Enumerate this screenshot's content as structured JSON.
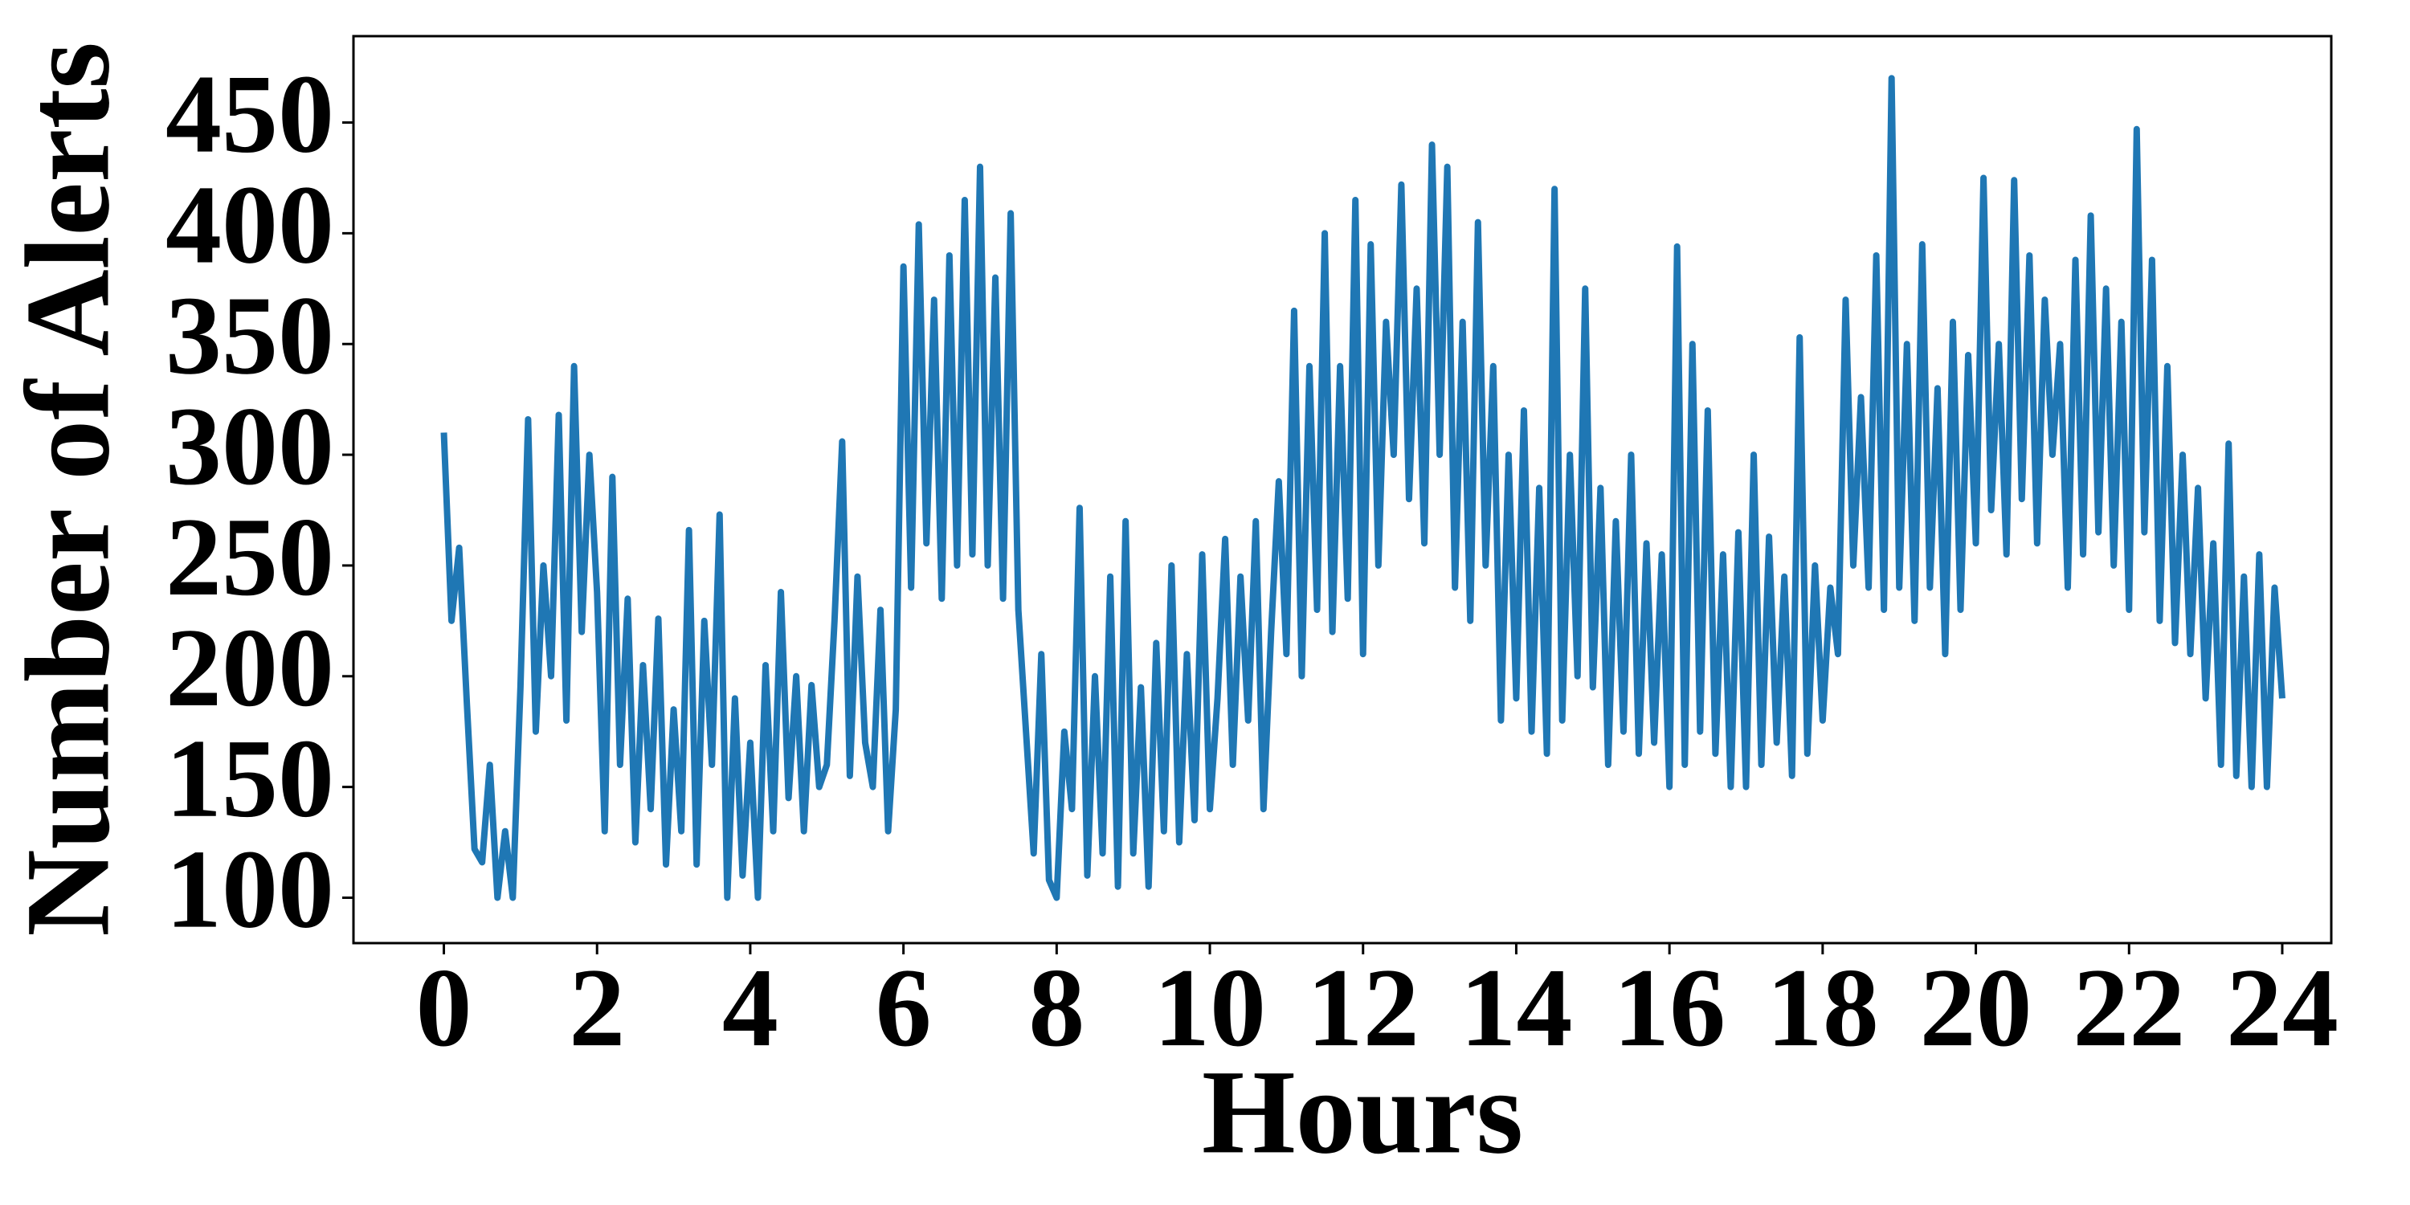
{
  "chart_data": {
    "type": "line",
    "xlabel": "Hours",
    "ylabel": "Number of Alerts",
    "color": "#1f77b4",
    "xlim": [
      -1.18,
      24.64
    ],
    "ylim": [
      79.5,
      489
    ],
    "xticks": [
      0,
      2,
      4,
      6,
      8,
      10,
      12,
      14,
      16,
      18,
      20,
      22,
      24
    ],
    "yticks": [
      100,
      150,
      200,
      250,
      300,
      350,
      400,
      450
    ],
    "grid": false,
    "x": [
      0,
      0.1,
      0.2,
      0.3,
      0.4,
      0.5,
      0.6,
      0.7,
      0.8,
      0.9,
      1,
      1.1,
      1.2,
      1.3,
      1.4,
      1.5,
      1.6,
      1.7,
      1.8,
      1.9,
      2,
      2.1,
      2.2,
      2.3,
      2.4,
      2.5,
      2.6,
      2.7,
      2.8,
      2.9,
      3,
      3.1,
      3.2,
      3.3,
      3.4,
      3.5,
      3.6,
      3.7,
      3.8,
      3.9,
      4,
      4.1,
      4.2,
      4.3,
      4.4,
      4.5,
      4.6,
      4.7,
      4.8,
      4.9,
      5,
      5.1,
      5.2,
      5.3,
      5.4,
      5.5,
      5.6,
      5.7,
      5.8,
      5.9,
      6,
      6.1,
      6.2,
      6.3,
      6.4,
      6.5,
      6.6,
      6.7,
      6.8,
      6.9,
      7,
      7.1,
      7.2,
      7.3,
      7.4,
      7.5,
      7.6,
      7.7,
      7.8,
      7.9,
      8,
      8.1,
      8.2,
      8.3,
      8.4,
      8.5,
      8.6,
      8.7,
      8.8,
      8.9,
      9,
      9.1,
      9.2,
      9.3,
      9.4,
      9.5,
      9.6,
      9.7,
      9.8,
      9.9,
      10,
      10.1,
      10.2,
      10.3,
      10.4,
      10.5,
      10.6,
      10.7,
      10.8,
      10.9,
      11,
      11.1,
      11.2,
      11.3,
      11.4,
      11.5,
      11.6,
      11.7,
      11.8,
      11.9,
      12,
      12.1,
      12.2,
      12.3,
      12.4,
      12.5,
      12.6,
      12.7,
      12.8,
      12.9,
      13,
      13.1,
      13.2,
      13.3,
      13.4,
      13.5,
      13.6,
      13.7,
      13.8,
      13.9,
      14,
      14.1,
      14.2,
      14.3,
      14.4,
      14.5,
      14.6,
      14.7,
      14.8,
      14.9,
      15,
      15.1,
      15.2,
      15.3,
      15.4,
      15.5,
      15.6,
      15.7,
      15.8,
      15.9,
      16,
      16.1,
      16.2,
      16.3,
      16.4,
      16.5,
      16.6,
      16.7,
      16.8,
      16.9,
      17,
      17.1,
      17.2,
      17.3,
      17.4,
      17.5,
      17.6,
      17.7,
      17.8,
      17.9,
      18,
      18.1,
      18.2,
      18.3,
      18.4,
      18.5,
      18.6,
      18.7,
      18.8,
      18.9,
      19,
      19.1,
      19.2,
      19.3,
      19.4,
      19.5,
      19.6,
      19.7,
      19.8,
      19.9,
      20,
      20.1,
      20.2,
      20.3,
      20.4,
      20.5,
      20.6,
      20.7,
      20.8,
      20.9,
      21,
      21.1,
      21.2,
      21.3,
      21.4,
      21.5,
      21.6,
      21.7,
      21.8,
      21.9,
      22,
      22.1,
      22.2,
      22.3,
      22.4,
      22.5,
      22.6,
      22.7,
      22.8,
      22.9,
      23,
      23.1,
      23.2,
      23.3,
      23.4,
      23.5,
      23.6,
      23.7,
      23.8,
      23.9,
      24
    ],
    "values": [
      310,
      225,
      258,
      188,
      122,
      116,
      160,
      100,
      130,
      100,
      195,
      316,
      175,
      250,
      200,
      318,
      180,
      340,
      220,
      300,
      238,
      130,
      290,
      160,
      235,
      125,
      205,
      140,
      226,
      115,
      185,
      130,
      266,
      115,
      225,
      160,
      273,
      100,
      190,
      110,
      170,
      100,
      205,
      130,
      238,
      145,
      200,
      130,
      196,
      150,
      160,
      225,
      306,
      155,
      245,
      170,
      150,
      230,
      130,
      185,
      385,
      240,
      404,
      260,
      370,
      235,
      390,
      250,
      415,
      255,
      430,
      250,
      380,
      235,
      409,
      230,
      175,
      120,
      210,
      108,
      100,
      175,
      140,
      276,
      110,
      200,
      120,
      245,
      105,
      270,
      120,
      195,
      105,
      215,
      130,
      250,
      125,
      210,
      135,
      255,
      140,
      190,
      262,
      160,
      245,
      180,
      270,
      140,
      220,
      288,
      210,
      365,
      200,
      340,
      230,
      400,
      220,
      340,
      235,
      415,
      210,
      395,
      250,
      360,
      300,
      422,
      280,
      375,
      260,
      440,
      300,
      430,
      240,
      360,
      225,
      405,
      250,
      340,
      180,
      300,
      190,
      320,
      175,
      285,
      165,
      420,
      180,
      300,
      200,
      375,
      195,
      285,
      160,
      270,
      175,
      300,
      165,
      260,
      170,
      255,
      150,
      394,
      160,
      350,
      175,
      320,
      165,
      255,
      150,
      265,
      150,
      300,
      160,
      263,
      170,
      245,
      155,
      353,
      165,
      250,
      180,
      240,
      210,
      370,
      250,
      326,
      240,
      390,
      230,
      470,
      240,
      350,
      225,
      395,
      240,
      330,
      210,
      360,
      230,
      345,
      260,
      425,
      275,
      350,
      255,
      424,
      280,
      390,
      260,
      370,
      300,
      350,
      240,
      388,
      255,
      408,
      265,
      375,
      250,
      360,
      230,
      447,
      265,
      388,
      225,
      340,
      215,
      300,
      210,
      285,
      190,
      260,
      160,
      305,
      155,
      245,
      150,
      255,
      150,
      240,
      190
    ]
  }
}
